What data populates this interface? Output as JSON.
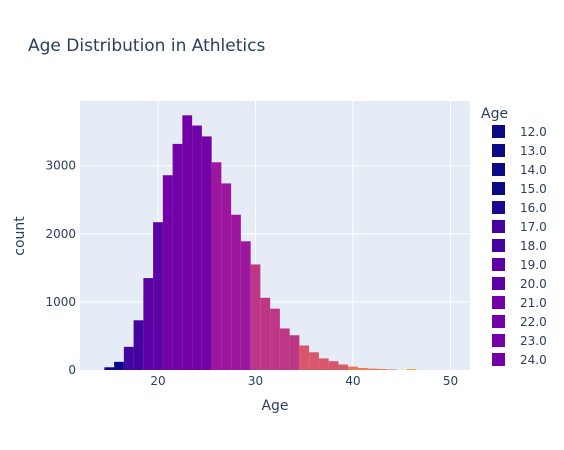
{
  "chart_data": {
    "type": "bar",
    "title": "Age Distribution in Athletics",
    "xlabel": "Age",
    "ylabel": "count",
    "xlim": [
      12,
      52
    ],
    "ylim": [
      0,
      3950
    ],
    "x_ticks": [
      20,
      30,
      40,
      50
    ],
    "y_ticks": [
      0,
      1000,
      2000,
      3000
    ],
    "x_tick_labels": [
      "20",
      "30",
      "40",
      "50"
    ],
    "y_tick_labels": [
      "0",
      "1000",
      "2000",
      "3000"
    ],
    "grid": true,
    "legend": {
      "title": "Age",
      "placement": "right",
      "items": [
        {
          "label": "12.0",
          "color": "#0d0887"
        },
        {
          "label": "13.0",
          "color": "#0d0887"
        },
        {
          "label": "14.0",
          "color": "#0d0887"
        },
        {
          "label": "15.0",
          "color": "#0d0887"
        },
        {
          "label": "16.0",
          "color": "#1a0890"
        },
        {
          "label": "17.0",
          "color": "#46039f"
        },
        {
          "label": "18.0",
          "color": "#46039f"
        },
        {
          "label": "19.0",
          "color": "#5c01a6"
        },
        {
          "label": "20.0",
          "color": "#5c01a6"
        },
        {
          "label": "21.0",
          "color": "#7201a8"
        },
        {
          "label": "22.0",
          "color": "#7201a8"
        },
        {
          "label": "23.0",
          "color": "#7201a8"
        },
        {
          "label": "24.0",
          "color": "#7201a8"
        }
      ]
    },
    "bins": [
      {
        "age": 15,
        "count": 40,
        "color": "#0d0887"
      },
      {
        "age": 16,
        "count": 120,
        "color": "#0d0887"
      },
      {
        "age": 17,
        "count": 340,
        "color": "#46039f"
      },
      {
        "age": 18,
        "count": 730,
        "color": "#46039f"
      },
      {
        "age": 19,
        "count": 1350,
        "color": "#5c01a6"
      },
      {
        "age": 20,
        "count": 2170,
        "color": "#5c01a6"
      },
      {
        "age": 21,
        "count": 2860,
        "color": "#7201a8"
      },
      {
        "age": 22,
        "count": 3320,
        "color": "#7201a8"
      },
      {
        "age": 23,
        "count": 3740,
        "color": "#7201a8"
      },
      {
        "age": 24,
        "count": 3590,
        "color": "#7201a8"
      },
      {
        "age": 25,
        "count": 3430,
        "color": "#7201a8"
      },
      {
        "age": 26,
        "count": 3050,
        "color": "#9c179e"
      },
      {
        "age": 27,
        "count": 2740,
        "color": "#9c179e"
      },
      {
        "age": 28,
        "count": 2280,
        "color": "#9c179e"
      },
      {
        "age": 29,
        "count": 1890,
        "color": "#9c179e"
      },
      {
        "age": 30,
        "count": 1550,
        "color": "#bd3786"
      },
      {
        "age": 31,
        "count": 1060,
        "color": "#bd3786"
      },
      {
        "age": 32,
        "count": 900,
        "color": "#bd3786"
      },
      {
        "age": 33,
        "count": 610,
        "color": "#bd3786"
      },
      {
        "age": 34,
        "count": 510,
        "color": "#bd3786"
      },
      {
        "age": 35,
        "count": 360,
        "color": "#d8576b"
      },
      {
        "age": 36,
        "count": 260,
        "color": "#d8576b"
      },
      {
        "age": 37,
        "count": 170,
        "color": "#d8576b"
      },
      {
        "age": 38,
        "count": 130,
        "color": "#d8576b"
      },
      {
        "age": 39,
        "count": 80,
        "color": "#d8576b"
      },
      {
        "age": 40,
        "count": 50,
        "color": "#ed7953"
      },
      {
        "age": 41,
        "count": 30,
        "color": "#ed7953"
      },
      {
        "age": 42,
        "count": 20,
        "color": "#ed7953"
      },
      {
        "age": 43,
        "count": 15,
        "color": "#ed7953"
      },
      {
        "age": 44,
        "count": 8,
        "color": "#ed7953"
      },
      {
        "age": 46,
        "count": 15,
        "color": "#fb9f3a"
      }
    ]
  }
}
